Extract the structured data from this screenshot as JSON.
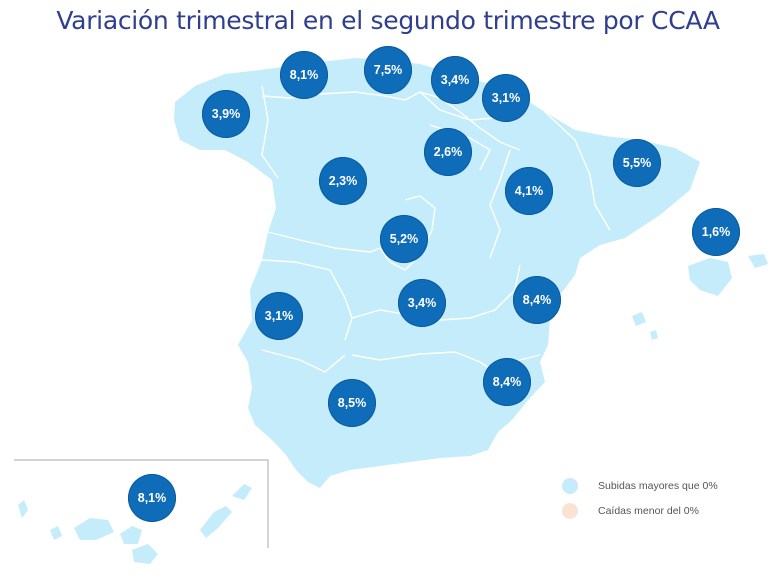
{
  "title": "Variación trimestral en el segundo trimestre por CCAA",
  "colors": {
    "land": "#c5ecfa",
    "border": "#ffffff",
    "bubble": "#0e6cb8",
    "increase": "#c5ecfa",
    "decrease": "#fbe3d3"
  },
  "regions": [
    {
      "name": "Galicia",
      "value": "3,9%"
    },
    {
      "name": "Asturias",
      "value": "8,1%"
    },
    {
      "name": "Cantabria",
      "value": "7,5%"
    },
    {
      "name": "País Vasco",
      "value": "3,4%"
    },
    {
      "name": "Navarra",
      "value": "3,1%"
    },
    {
      "name": "La Rioja",
      "value": "2,6%"
    },
    {
      "name": "Castilla y León",
      "value": "2,3%"
    },
    {
      "name": "Aragón",
      "value": "4,1%"
    },
    {
      "name": "Cataluña",
      "value": "5,5%"
    },
    {
      "name": "Baleares",
      "value": "1,6%"
    },
    {
      "name": "Madrid",
      "value": "5,2%"
    },
    {
      "name": "Extremadura",
      "value": "3,1%"
    },
    {
      "name": "Castilla-La Mancha",
      "value": "3,4%"
    },
    {
      "name": "Comunidad Valenciana",
      "value": "8,4%"
    },
    {
      "name": "Murcia",
      "value": "8,4%"
    },
    {
      "name": "Andalucía",
      "value": "8,5%"
    },
    {
      "name": "Canarias",
      "value": "8,1%"
    }
  ],
  "legend": [
    {
      "label": "Subidas mayores que 0%",
      "color": "#c5ecfa"
    },
    {
      "label": "Caídas menor del 0%",
      "color": "#fbe3d3"
    }
  ]
}
